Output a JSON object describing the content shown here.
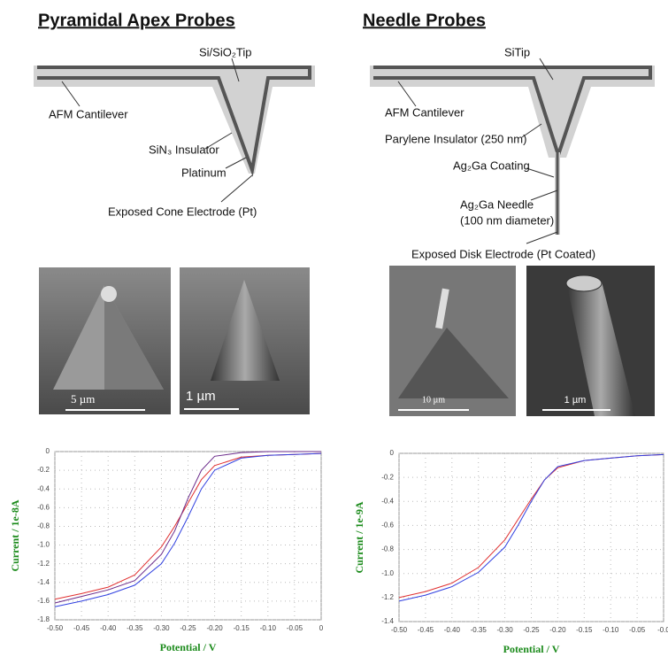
{
  "panels": [
    {
      "title": "Pyramidal Apex Probes",
      "labels": [
        "Si/SiO₂Tip",
        "AFM Cantilever",
        "SiN₃ Insulator",
        "Platinum",
        "Exposed Cone Electrode (Pt)"
      ],
      "scale_bars": [
        "5 µm",
        "1 µm"
      ]
    },
    {
      "title": "Needle Probes",
      "labels": [
        "SiTip",
        "AFM Cantilever",
        "Parylene Insulator (250 nm)",
        "Ag₂Ga Coating",
        "Ag₂Ga Needle",
        "(100 nm diameter)",
        "Exposed Disk Electrode (Pt Coated)"
      ],
      "scale_bars": [
        "10 µm",
        "1 µm"
      ]
    }
  ],
  "chart_data": [
    {
      "type": "line",
      "x_label": "Potential / V",
      "y_label": "Current / 1e-8A",
      "x": [
        -0.5,
        -0.45,
        -0.4,
        -0.35,
        -0.3,
        -0.275,
        -0.25,
        -0.225,
        -0.2,
        -0.15,
        -0.1,
        -0.05,
        0
      ],
      "series": [
        {
          "color": "#e03030",
          "values": [
            -1.58,
            -1.52,
            -1.45,
            -1.32,
            -1.02,
            -0.8,
            -0.55,
            -0.3,
            -0.15,
            -0.06,
            -0.04,
            -0.03,
            -0.02
          ]
        },
        {
          "color": "#6a2a8a",
          "values": [
            -1.62,
            -1.55,
            -1.48,
            -1.38,
            -1.1,
            -0.85,
            -0.5,
            -0.2,
            -0.05,
            -0.01,
            0,
            0,
            0
          ]
        },
        {
          "color": "#3040e0",
          "values": [
            -1.66,
            -1.6,
            -1.53,
            -1.43,
            -1.2,
            -0.98,
            -0.7,
            -0.4,
            -0.2,
            -0.07,
            -0.04,
            -0.03,
            -0.02
          ]
        }
      ],
      "xlim": [
        -0.5,
        0
      ],
      "ylim": [
        -1.8,
        0
      ],
      "xticks": [
        {
          "value": -0.5,
          "label": "-0.50"
        },
        -0.45,
        {
          "value": -0.4,
          "label": "-0.40"
        },
        -0.35,
        {
          "value": -0.3,
          "label": "-0.30"
        },
        -0.25,
        {
          "value": -0.2,
          "label": "-0.20"
        },
        -0.15,
        {
          "value": -0.1,
          "label": "-0.10"
        },
        -0.05,
        0
      ],
      "yticks": [
        -1.8,
        -1.6,
        -1.4,
        -1.2,
        {
          "value": -1,
          "label": "-1.0"
        },
        -0.8,
        -0.6,
        -0.4,
        -0.2,
        0
      ],
      "grid": true
    },
    {
      "type": "line",
      "x_label": "Potential / V",
      "y_label": "Current / 1e-9A",
      "x": [
        -0.5,
        -0.45,
        -0.4,
        -0.35,
        -0.3,
        -0.275,
        -0.25,
        -0.225,
        -0.2,
        -0.15,
        -0.1,
        -0.05,
        0
      ],
      "series": [
        {
          "color": "#e03030",
          "values": [
            -1.2,
            -1.15,
            -1.08,
            -0.95,
            -0.72,
            -0.55,
            -0.38,
            -0.22,
            -0.12,
            -0.06,
            -0.04,
            -0.02,
            -0.01
          ]
        },
        {
          "color": "#3040e0",
          "values": [
            -1.23,
            -1.18,
            -1.11,
            -0.99,
            -0.78,
            -0.6,
            -0.4,
            -0.22,
            -0.11,
            -0.06,
            -0.04,
            -0.02,
            -0.01
          ]
        }
      ],
      "xlim": [
        -0.5,
        0
      ],
      "ylim": [
        -1.4,
        0
      ],
      "xticks": [
        {
          "value": -0.5,
          "label": "-0.50"
        },
        -0.45,
        {
          "value": -0.4,
          "label": "-0.40"
        },
        -0.35,
        {
          "value": -0.3,
          "label": "-0.30"
        },
        -0.25,
        {
          "value": -0.2,
          "label": "-0.20"
        },
        -0.15,
        {
          "value": -0.1,
          "label": "-0.10"
        },
        -0.05,
        {
          "value": 0,
          "label": "-0.0"
        }
      ],
      "yticks": [
        -1.4,
        -1.2,
        {
          "value": -1,
          "label": "-1.0"
        },
        -0.8,
        -0.6,
        -0.4,
        -0.2,
        0
      ],
      "grid": true
    }
  ]
}
